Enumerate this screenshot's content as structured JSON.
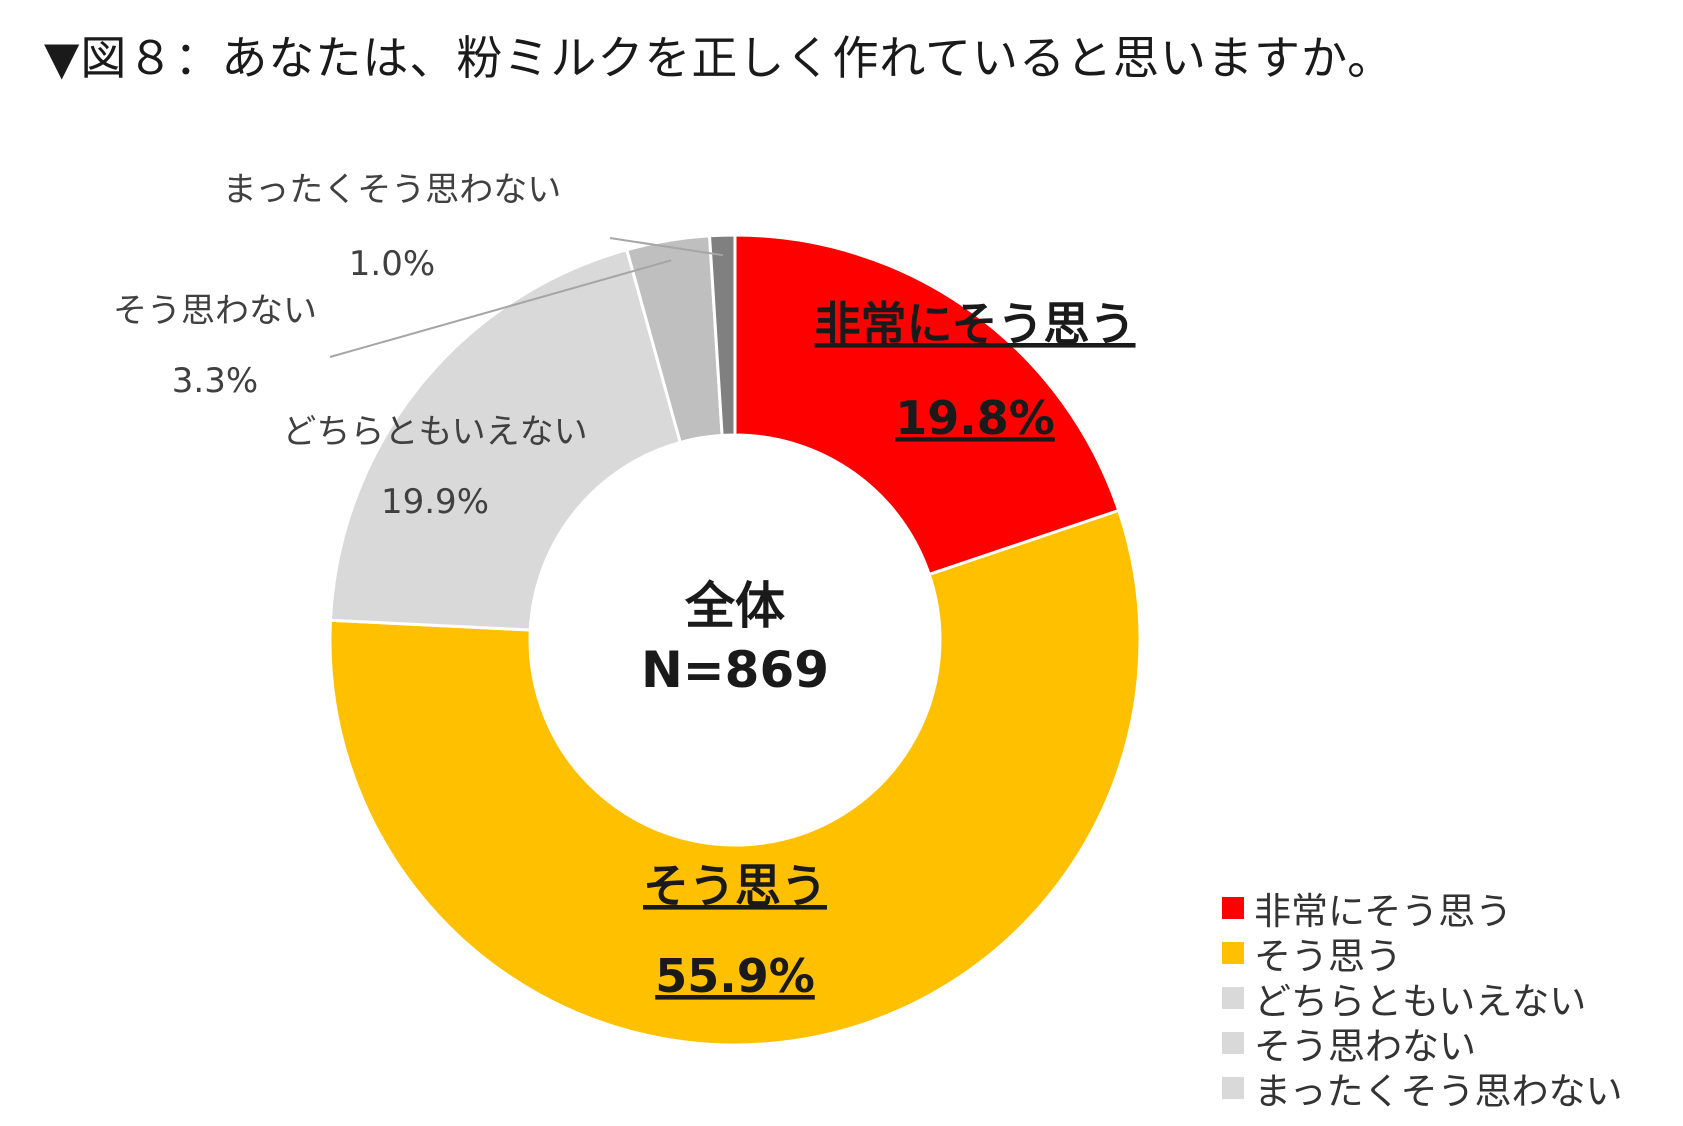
{
  "title": "▼図８：あなたは、粉ミルクを正しく作れていると思いますか。",
  "center": {
    "line1": "全体",
    "line2": "N=869"
  },
  "chart_data": {
    "type": "pie",
    "categories": [
      "非常にそう思う",
      "そう思う",
      "どちらともいえない",
      "そう思わない",
      "まったくそう思わない"
    ],
    "values": [
      19.8,
      55.9,
      19.9,
      3.3,
      1.0
    ],
    "value_labels": [
      "19.8%",
      "55.9%",
      "19.9%",
      "3.3%",
      "1.0%"
    ],
    "colors": [
      "#FF0000",
      "#FFC000",
      "#D9D9D9",
      "#BFBFBF",
      "#808080"
    ],
    "legend_colors": [
      "#FF0000",
      "#FFC000",
      "#D9D9D9",
      "#D9D9D9",
      "#D9D9D9"
    ],
    "legend_position": "bottom-right",
    "donut": true
  }
}
